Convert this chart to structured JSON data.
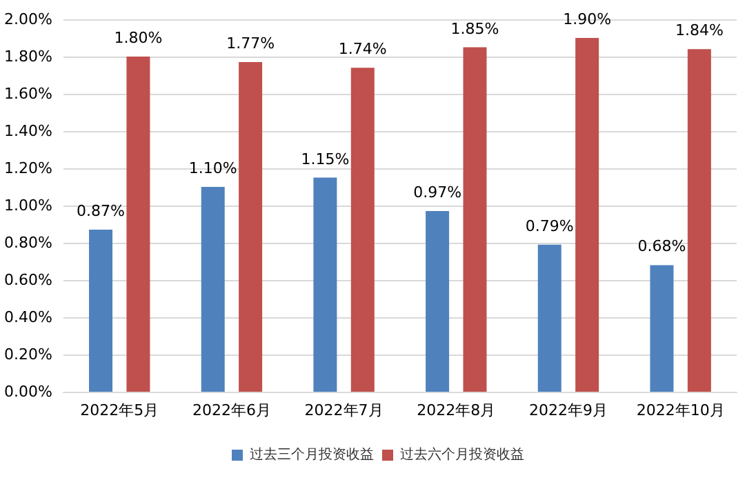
{
  "chart_data": {
    "type": "bar",
    "categories": [
      "2022年5月",
      "2022年6月",
      "2022年7月",
      "2022年8月",
      "2022年9月",
      "2022年10月"
    ],
    "series": [
      {
        "name": "过去三个月投资收益",
        "color": "#4f81bd",
        "values": [
          0.87,
          1.1,
          1.15,
          0.97,
          0.79,
          0.68
        ],
        "value_labels": [
          "0.87%",
          "1.10%",
          "1.15%",
          "0.97%",
          "0.79%",
          "0.68%"
        ]
      },
      {
        "name": "过去六个月投资收益",
        "color": "#c0504d",
        "values": [
          1.8,
          1.77,
          1.74,
          1.85,
          1.9,
          1.84
        ],
        "value_labels": [
          "1.80%",
          "1.77%",
          "1.74%",
          "1.85%",
          "1.90%",
          "1.84%"
        ]
      }
    ],
    "ylim": [
      0,
      2
    ],
    "yticks": [
      {
        "value": 0,
        "label": "0.00%"
      },
      {
        "value": 0.2,
        "label": "0.20%"
      },
      {
        "value": 0.4,
        "label": "0.40%"
      },
      {
        "value": 0.6,
        "label": "0.60%"
      },
      {
        "value": 0.8,
        "label": "0.80%"
      },
      {
        "value": 1,
        "label": "1.00%"
      },
      {
        "value": 1.2,
        "label": "1.20%"
      },
      {
        "value": 1.4,
        "label": "1.40%"
      },
      {
        "value": 1.6,
        "label": "1.60%"
      },
      {
        "value": 1.8,
        "label": "1.80%"
      },
      {
        "value": 2,
        "label": "2.00%"
      }
    ],
    "grid": "y",
    "legend": "bottom"
  }
}
